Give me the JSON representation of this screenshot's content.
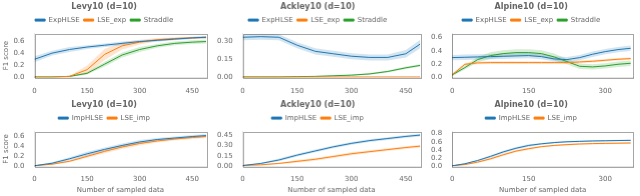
{
  "chart_data": [
    {
      "type": "line",
      "title": "Levy10 (d=10)",
      "ylabel": "F1 score",
      "x": [
        0,
        50,
        100,
        150,
        200,
        250,
        300,
        350,
        400,
        450,
        490
      ],
      "series": [
        {
          "name": "ExpHLSE",
          "color": "#1f77b4",
          "values": [
            0.3,
            0.4,
            0.46,
            0.5,
            0.53,
            0.56,
            0.59,
            0.61,
            0.63,
            0.65,
            0.66
          ],
          "std": [
            0.05,
            0.04,
            0.04,
            0.03,
            0.03,
            0.03,
            0.02,
            0.02,
            0.02,
            0.02,
            0.02
          ]
        },
        {
          "name": "LSE_exp",
          "color": "#ff7f0e",
          "values": [
            0.01,
            0.01,
            0.02,
            0.13,
            0.38,
            0.52,
            0.58,
            0.62,
            0.64,
            0.65,
            0.66
          ],
          "std": [
            0.005,
            0.005,
            0.01,
            0.07,
            0.09,
            0.06,
            0.04,
            0.03,
            0.02,
            0.02,
            0.02
          ]
        },
        {
          "name": "Straddle",
          "color": "#2ca02c",
          "values": [
            0.01,
            0.01,
            0.02,
            0.07,
            0.22,
            0.37,
            0.46,
            0.52,
            0.56,
            0.58,
            0.59
          ],
          "std": [
            0.005,
            0.005,
            0.01,
            0.02,
            0.04,
            0.04,
            0.04,
            0.03,
            0.03,
            0.03,
            0.03
          ]
        }
      ],
      "xlim": [
        0,
        490
      ],
      "xticks": [
        0,
        150,
        300,
        450
      ],
      "ylim": [
        0,
        0.72
      ],
      "yticks": [
        {
          "value": 0,
          "label": "0.0"
        },
        0.2,
        0.4,
        0.6
      ],
      "grid": false,
      "legend": "top"
    },
    {
      "type": "line",
      "title": "Ackley10 (d=10)",
      "x": [
        0,
        50,
        100,
        150,
        200,
        250,
        300,
        350,
        400,
        450,
        490
      ],
      "series": [
        {
          "name": "ExpHLSE",
          "color": "#1f77b4",
          "values": [
            0.33,
            0.335,
            0.33,
            0.265,
            0.215,
            0.195,
            0.175,
            0.165,
            0.165,
            0.195,
            0.275
          ],
          "std": [
            0.025,
            0.025,
            0.025,
            0.025,
            0.025,
            0.025,
            0.025,
            0.025,
            0.025,
            0.03,
            0.035
          ]
        },
        {
          "name": "LSE_exp",
          "color": "#ff7f0e",
          "values": [
            0.005,
            0.005,
            0.005,
            0.005,
            0.005,
            0.005,
            0.005,
            0.005,
            0.005,
            0.005,
            0.005
          ],
          "std": [
            0.002,
            0.002,
            0.002,
            0.002,
            0.002,
            0.002,
            0.002,
            0.002,
            0.002,
            0.002,
            0.002
          ]
        },
        {
          "name": "Straddle",
          "color": "#2ca02c",
          "values": [
            0.005,
            0.005,
            0.005,
            0.008,
            0.01,
            0.015,
            0.02,
            0.03,
            0.05,
            0.08,
            0.1
          ],
          "std": [
            0.002,
            0.002,
            0.002,
            0.003,
            0.003,
            0.004,
            0.005,
            0.007,
            0.009,
            0.01,
            0.01
          ]
        }
      ],
      "xlim": [
        0,
        490
      ],
      "xticks": [
        0,
        150,
        300,
        450
      ],
      "ylim": [
        0,
        0.36
      ],
      "yticks": [
        {
          "value": 0,
          "label": "0.00"
        },
        0.15,
        {
          "value": 0.3,
          "label": "0.30"
        }
      ],
      "grid": false,
      "legend": "top"
    },
    {
      "type": "line",
      "title": "Alpine10 (d=10)",
      "x": [
        0,
        25,
        50,
        75,
        100,
        125,
        150,
        175,
        200,
        225,
        250,
        275,
        300,
        325,
        350
      ],
      "series": [
        {
          "name": "ExpHLSE",
          "color": "#1f77b4",
          "values": [
            0.3,
            0.305,
            0.31,
            0.315,
            0.32,
            0.325,
            0.33,
            0.315,
            0.28,
            0.27,
            0.3,
            0.35,
            0.39,
            0.42,
            0.44
          ],
          "std": [
            0.04,
            0.04,
            0.04,
            0.04,
            0.04,
            0.04,
            0.04,
            0.04,
            0.04,
            0.04,
            0.04,
            0.04,
            0.04,
            0.04,
            0.04
          ]
        },
        {
          "name": "LSE_exp",
          "color": "#ff7f0e",
          "values": [
            0.04,
            0.2,
            0.22,
            0.225,
            0.225,
            0.225,
            0.225,
            0.225,
            0.225,
            0.225,
            0.235,
            0.245,
            0.26,
            0.275,
            0.285
          ],
          "std": [
            0.02,
            0.02,
            0.02,
            0.02,
            0.02,
            0.02,
            0.02,
            0.02,
            0.02,
            0.02,
            0.02,
            0.02,
            0.02,
            0.02,
            0.02
          ]
        },
        {
          "name": "Straddle",
          "color": "#2ca02c",
          "values": [
            0.04,
            0.15,
            0.27,
            0.33,
            0.36,
            0.375,
            0.375,
            0.36,
            0.31,
            0.24,
            0.17,
            0.16,
            0.175,
            0.2,
            0.215
          ],
          "std": [
            0.02,
            0.03,
            0.04,
            0.05,
            0.05,
            0.05,
            0.05,
            0.05,
            0.05,
            0.04,
            0.04,
            0.04,
            0.04,
            0.04,
            0.04
          ]
        }
      ],
      "xlim": [
        0,
        355
      ],
      "xticks": [
        0,
        150,
        300
      ],
      "ylim": [
        0,
        0.66
      ],
      "yticks": [
        {
          "value": 0,
          "label": "0.0"
        },
        0.2,
        0.4,
        0.6
      ],
      "grid": false,
      "legend": "top"
    },
    {
      "type": "line",
      "title": "Levy10 (d=10)",
      "ylabel": "F1 score",
      "xlabel": "Number of sampled data",
      "x": [
        0,
        50,
        100,
        150,
        200,
        250,
        300,
        350,
        400,
        450,
        490
      ],
      "series": [
        {
          "name": "ImpHLSE",
          "color": "#1f77b4",
          "values": [
            0.01,
            0.06,
            0.15,
            0.25,
            0.34,
            0.42,
            0.49,
            0.54,
            0.57,
            0.6,
            0.62
          ],
          "std": [
            0.005,
            0.02,
            0.03,
            0.04,
            0.04,
            0.04,
            0.04,
            0.03,
            0.03,
            0.03,
            0.03
          ]
        },
        {
          "name": "LSE_imp",
          "color": "#ff7f0e",
          "values": [
            0.01,
            0.04,
            0.1,
            0.2,
            0.3,
            0.39,
            0.46,
            0.51,
            0.55,
            0.58,
            0.6
          ],
          "std": [
            0.005,
            0.01,
            0.02,
            0.03,
            0.04,
            0.04,
            0.04,
            0.03,
            0.03,
            0.03,
            0.03
          ]
        }
      ],
      "xlim": [
        0,
        490
      ],
      "xticks": [
        0,
        150,
        300,
        450
      ],
      "ylim": [
        0,
        0.7
      ],
      "yticks": [
        {
          "value": 0,
          "label": "0.0"
        },
        0.2,
        0.4,
        0.6
      ],
      "grid": false,
      "legend": "top"
    },
    {
      "type": "line",
      "title": "Ackley10 (d=10)",
      "xlabel": "Number of sampled data",
      "x": [
        0,
        50,
        100,
        150,
        200,
        250,
        300,
        350,
        400,
        450,
        490
      ],
      "series": [
        {
          "name": "ImpHLSE",
          "color": "#1f77b4",
          "values": [
            0.01,
            0.04,
            0.09,
            0.16,
            0.22,
            0.28,
            0.33,
            0.37,
            0.4,
            0.43,
            0.45
          ],
          "std": [
            0.005,
            0.01,
            0.02,
            0.02,
            0.02,
            0.02,
            0.02,
            0.02,
            0.02,
            0.02,
            0.02
          ]
        },
        {
          "name": "LSE_imp",
          "color": "#ff7f0e",
          "values": [
            0.01,
            0.02,
            0.04,
            0.07,
            0.1,
            0.14,
            0.18,
            0.21,
            0.24,
            0.27,
            0.29
          ],
          "std": [
            0.005,
            0.01,
            0.01,
            0.02,
            0.02,
            0.02,
            0.02,
            0.02,
            0.02,
            0.02,
            0.02
          ]
        }
      ],
      "xlim": [
        0,
        490
      ],
      "xticks": [
        0,
        150,
        300,
        450
      ],
      "ylim": [
        0,
        0.5
      ],
      "yticks": [
        {
          "value": 0,
          "label": "0.00"
        },
        0.15,
        {
          "value": 0.3,
          "label": "0.30"
        },
        0.45
      ],
      "grid": false,
      "legend": "top"
    },
    {
      "type": "line",
      "title": "Alpine10 (d=10)",
      "xlabel": "Number of sampled data",
      "x": [
        0,
        25,
        50,
        75,
        100,
        125,
        150,
        175,
        200,
        225,
        250,
        275,
        300,
        325,
        350
      ],
      "series": [
        {
          "name": "ImpHLSE",
          "color": "#1f77b4",
          "values": [
            0.01,
            0.06,
            0.14,
            0.24,
            0.35,
            0.44,
            0.51,
            0.55,
            0.58,
            0.6,
            0.61,
            0.62,
            0.625,
            0.63,
            0.635
          ],
          "std": [
            0.005,
            0.01,
            0.02,
            0.03,
            0.03,
            0.03,
            0.03,
            0.02,
            0.02,
            0.02,
            0.02,
            0.02,
            0.02,
            0.02,
            0.02
          ]
        },
        {
          "name": "LSE_imp",
          "color": "#ff7f0e",
          "values": [
            0.01,
            0.04,
            0.1,
            0.18,
            0.28,
            0.37,
            0.43,
            0.48,
            0.51,
            0.53,
            0.545,
            0.555,
            0.56,
            0.565,
            0.57
          ],
          "std": [
            0.005,
            0.01,
            0.02,
            0.03,
            0.03,
            0.03,
            0.03,
            0.02,
            0.02,
            0.02,
            0.02,
            0.02,
            0.02,
            0.02,
            0.02
          ]
        }
      ],
      "xlim": [
        0,
        355
      ],
      "xticks": [
        0,
        150,
        300
      ],
      "ylim": [
        0,
        0.85
      ],
      "yticks": [
        {
          "value": 0,
          "label": "0.0"
        },
        0.2,
        0.4,
        0.6,
        0.8
      ],
      "grid": false,
      "legend": "top"
    }
  ]
}
